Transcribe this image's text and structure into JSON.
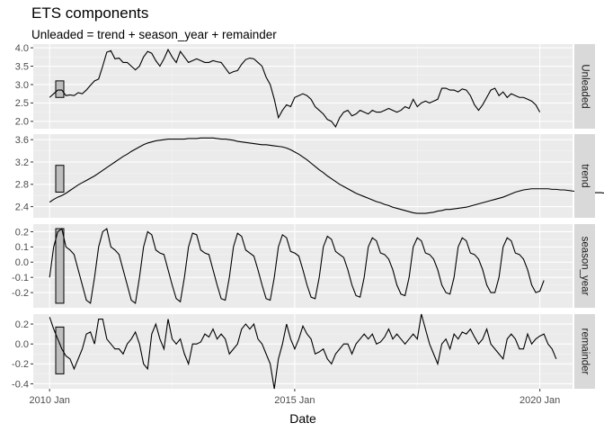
{
  "chart_data": {
    "type": "line",
    "title": "ETS components",
    "subtitle": "Unleaded = trend + season_year + remainder",
    "xlabel": "Date",
    "x_ticks": [
      "2010 Jan",
      "2015 Jan",
      "2020 Jan"
    ],
    "x_range": [
      "2009-09",
      "2020-09"
    ],
    "x_start": "2010-01",
    "x_step": "month",
    "grid": true,
    "panels": [
      {
        "name": "Unleaded",
        "ylim": [
          1.8,
          4.1
        ],
        "y_ticks": [
          "2.0",
          "2.5",
          "3.0",
          "3.5",
          "4.0"
        ],
        "y_tick_values": [
          2.0,
          2.5,
          3.0,
          3.5,
          4.0
        ],
        "scale_bar": [
          2.65,
          3.1
        ],
        "values": [
          2.65,
          2.75,
          2.85,
          2.85,
          2.7,
          2.72,
          2.7,
          2.78,
          2.75,
          2.85,
          2.98,
          3.1,
          3.15,
          3.5,
          3.88,
          3.92,
          3.7,
          3.72,
          3.6,
          3.6,
          3.5,
          3.4,
          3.5,
          3.75,
          3.9,
          3.85,
          3.65,
          3.5,
          3.7,
          3.95,
          3.75,
          3.6,
          3.9,
          3.75,
          3.6,
          3.65,
          3.7,
          3.65,
          3.6,
          3.6,
          3.65,
          3.62,
          3.6,
          3.45,
          3.3,
          3.35,
          3.38,
          3.55,
          3.68,
          3.72,
          3.7,
          3.6,
          3.5,
          3.2,
          3.0,
          2.6,
          2.1,
          2.3,
          2.45,
          2.4,
          2.65,
          2.7,
          2.75,
          2.7,
          2.6,
          2.4,
          2.3,
          2.2,
          2.05,
          2.0,
          1.85,
          2.1,
          2.25,
          2.3,
          2.15,
          2.2,
          2.3,
          2.25,
          2.2,
          2.3,
          2.25,
          2.25,
          2.3,
          2.35,
          2.3,
          2.25,
          2.3,
          2.4,
          2.35,
          2.6,
          2.4,
          2.5,
          2.55,
          2.5,
          2.55,
          2.6,
          2.9,
          2.9,
          2.85,
          2.85,
          2.8,
          2.88,
          2.85,
          2.7,
          2.45,
          2.3,
          2.45,
          2.65,
          2.85,
          2.9,
          2.7,
          2.8,
          2.65,
          2.75,
          2.7,
          2.65,
          2.65,
          2.6,
          2.55,
          2.45,
          2.25
        ]
      },
      {
        "name": "trend",
        "ylim": [
          2.2,
          3.7
        ],
        "y_ticks": [
          "2.4",
          "2.8",
          "3.2",
          "3.6"
        ],
        "y_tick_values": [
          2.4,
          2.8,
          3.2,
          3.6
        ],
        "scale_bar": [
          2.66,
          3.14
        ],
        "values": [
          2.48,
          2.53,
          2.57,
          2.6,
          2.64,
          2.69,
          2.74,
          2.79,
          2.83,
          2.87,
          2.91,
          2.95,
          3.0,
          3.05,
          3.1,
          3.15,
          3.2,
          3.25,
          3.3,
          3.34,
          3.39,
          3.43,
          3.47,
          3.51,
          3.54,
          3.56,
          3.58,
          3.59,
          3.6,
          3.61,
          3.61,
          3.61,
          3.61,
          3.61,
          3.62,
          3.62,
          3.62,
          3.63,
          3.63,
          3.63,
          3.63,
          3.62,
          3.61,
          3.61,
          3.6,
          3.59,
          3.57,
          3.56,
          3.55,
          3.54,
          3.53,
          3.52,
          3.51,
          3.51,
          3.5,
          3.49,
          3.48,
          3.47,
          3.45,
          3.42,
          3.38,
          3.34,
          3.29,
          3.24,
          3.18,
          3.12,
          3.06,
          3.01,
          2.95,
          2.9,
          2.85,
          2.8,
          2.76,
          2.72,
          2.68,
          2.64,
          2.61,
          2.58,
          2.55,
          2.52,
          2.49,
          2.47,
          2.44,
          2.42,
          2.39,
          2.37,
          2.35,
          2.33,
          2.31,
          2.29,
          2.28,
          2.28,
          2.28,
          2.29,
          2.3,
          2.32,
          2.33,
          2.35,
          2.35,
          2.36,
          2.37,
          2.38,
          2.39,
          2.41,
          2.43,
          2.45,
          2.47,
          2.49,
          2.51,
          2.53,
          2.55,
          2.57,
          2.6,
          2.63,
          2.66,
          2.68,
          2.7,
          2.71,
          2.72,
          2.72,
          2.72,
          2.72,
          2.72,
          2.71,
          2.71,
          2.7,
          2.7,
          2.69,
          2.68,
          2.67,
          2.67,
          2.66,
          2.65,
          2.65,
          2.65,
          2.65,
          2.64,
          2.64,
          2.64,
          2.64,
          2.64,
          2.63,
          2.63,
          2.63,
          2.62,
          2.62,
          2.62
        ]
      },
      {
        "name": "season_year",
        "ylim": [
          -0.3,
          0.25
        ],
        "y_ticks": [
          "-0.2",
          "-0.1",
          "0.0",
          "0.1",
          "0.2"
        ],
        "y_tick_values": [
          -0.2,
          -0.1,
          0.0,
          0.1,
          0.2
        ],
        "scale_bar": [
          -0.27,
          0.22
        ],
        "values": [
          -0.1,
          0.1,
          0.2,
          0.22,
          0.1,
          0.08,
          0.05,
          -0.05,
          -0.15,
          -0.25,
          -0.27,
          -0.1,
          0.1,
          0.2,
          0.22,
          0.1,
          0.08,
          0.05,
          -0.05,
          -0.15,
          -0.25,
          -0.27,
          -0.1,
          0.1,
          0.2,
          0.18,
          0.08,
          0.06,
          0.05,
          -0.05,
          -0.15,
          -0.24,
          -0.26,
          -0.1,
          0.1,
          0.19,
          0.18,
          0.08,
          0.06,
          0.05,
          -0.05,
          -0.15,
          -0.24,
          -0.25,
          -0.1,
          0.1,
          0.19,
          0.17,
          0.08,
          0.06,
          0.04,
          -0.05,
          -0.15,
          -0.24,
          -0.25,
          -0.1,
          0.1,
          0.18,
          0.16,
          0.07,
          0.06,
          0.04,
          -0.05,
          -0.15,
          -0.23,
          -0.24,
          -0.1,
          0.1,
          0.17,
          0.15,
          0.07,
          0.05,
          0.03,
          -0.05,
          -0.15,
          -0.22,
          -0.23,
          -0.1,
          0.1,
          0.16,
          0.14,
          0.06,
          0.05,
          0.02,
          -0.05,
          -0.15,
          -0.21,
          -0.22,
          -0.1,
          0.1,
          0.16,
          0.14,
          0.06,
          0.05,
          0.02,
          -0.05,
          -0.15,
          -0.2,
          -0.21,
          -0.1,
          0.1,
          0.16,
          0.14,
          0.06,
          0.05,
          0.02,
          -0.05,
          -0.15,
          -0.2,
          -0.2,
          -0.1,
          0.1,
          0.16,
          0.14,
          0.06,
          0.05,
          0.02,
          -0.05,
          -0.15,
          -0.2,
          -0.19,
          -0.12
        ]
      },
      {
        "name": "remainder",
        "ylim": [
          -0.45,
          0.3
        ],
        "y_ticks": [
          "-0.4",
          "-0.2",
          "0.0",
          "0.2"
        ],
        "y_tick_values": [
          -0.4,
          -0.2,
          0.0,
          0.2
        ],
        "scale_bar": [
          -0.3,
          0.17
        ],
        "values": [
          0.27,
          0.15,
          0.05,
          -0.05,
          -0.12,
          -0.15,
          -0.25,
          -0.15,
          -0.05,
          0.1,
          0.12,
          0.0,
          0.25,
          0.25,
          0.05,
          0.0,
          -0.05,
          -0.05,
          -0.1,
          0.0,
          0.05,
          0.12,
          0.0,
          -0.2,
          -0.25,
          0.1,
          0.2,
          0.05,
          -0.05,
          0.25,
          0.05,
          0.0,
          0.05,
          -0.1,
          -0.2,
          0.0,
          0.0,
          0.02,
          0.1,
          0.07,
          0.15,
          0.05,
          0.1,
          0.05,
          -0.1,
          -0.05,
          0.0,
          0.15,
          0.2,
          0.15,
          0.2,
          0.05,
          0.0,
          -0.1,
          -0.2,
          -0.45,
          -0.15,
          0.0,
          0.2,
          0.05,
          -0.05,
          0.05,
          0.18,
          0.1,
          0.05,
          -0.1,
          -0.08,
          -0.05,
          -0.15,
          -0.2,
          -0.1,
          -0.05,
          0.0,
          0.0,
          -0.1,
          0.0,
          0.05,
          0.1,
          0.05,
          0.1,
          0.0,
          0.02,
          0.07,
          0.15,
          0.05,
          0.1,
          0.05,
          0.0,
          0.05,
          0.1,
          0.05,
          0.3,
          0.15,
          0.0,
          -0.1,
          -0.2,
          0.0,
          0.05,
          -0.05,
          0.1,
          0.05,
          0.12,
          0.1,
          0.15,
          0.07,
          0.0,
          0.05,
          0.15,
          0.0,
          -0.05,
          -0.1,
          -0.15,
          0.05,
          0.1,
          0.05,
          -0.05,
          -0.05,
          0.1,
          0.0,
          0.05,
          0.08,
          0.1,
          0.0,
          -0.05,
          -0.15
        ]
      }
    ]
  }
}
